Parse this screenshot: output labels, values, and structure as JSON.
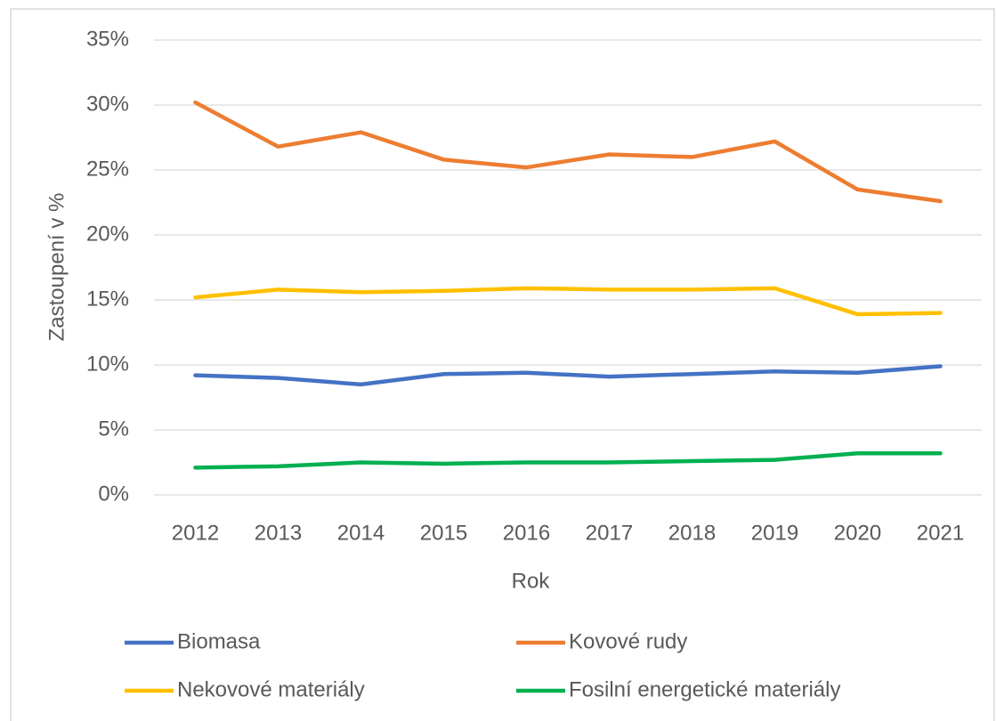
{
  "chart_data": {
    "type": "line",
    "x_label": "Rok",
    "y_label": "Zastoupení v %",
    "categories": [
      "2012",
      "2013",
      "2014",
      "2015",
      "2016",
      "2017",
      "2018",
      "2019",
      "2020",
      "2021"
    ],
    "series": [
      {
        "name": "Biomasa",
        "color": "#4472c4",
        "values": [
          9.2,
          9.0,
          8.5,
          9.3,
          9.4,
          9.1,
          9.3,
          9.5,
          9.4,
          9.9
        ]
      },
      {
        "name": "Kovové rudy",
        "color": "#ed7d31",
        "values": [
          30.2,
          26.8,
          27.9,
          25.8,
          25.2,
          26.2,
          26.0,
          27.2,
          23.5,
          22.6
        ]
      },
      {
        "name": "Nekovové materiály",
        "color": "#ffc000",
        "values": [
          15.2,
          15.8,
          15.6,
          15.7,
          15.9,
          15.8,
          15.8,
          15.9,
          13.9,
          14.0
        ]
      },
      {
        "name": "Fosilní energetické materiály",
        "color": "#00b050",
        "values": [
          2.1,
          2.2,
          2.5,
          2.4,
          2.5,
          2.5,
          2.6,
          2.7,
          3.2,
          3.2
        ]
      }
    ],
    "ylim": [
      0,
      35
    ],
    "yticks": [
      {
        "value": 0,
        "label": "0%"
      },
      {
        "value": 5,
        "label": "5%"
      },
      {
        "value": 10,
        "label": "10%"
      },
      {
        "value": 15,
        "label": "15%"
      },
      {
        "value": 20,
        "label": "20%"
      },
      {
        "value": 25,
        "label": "25%"
      },
      {
        "value": 30,
        "label": "30%"
      },
      {
        "value": 35,
        "label": "35%"
      }
    ],
    "grid": true
  }
}
